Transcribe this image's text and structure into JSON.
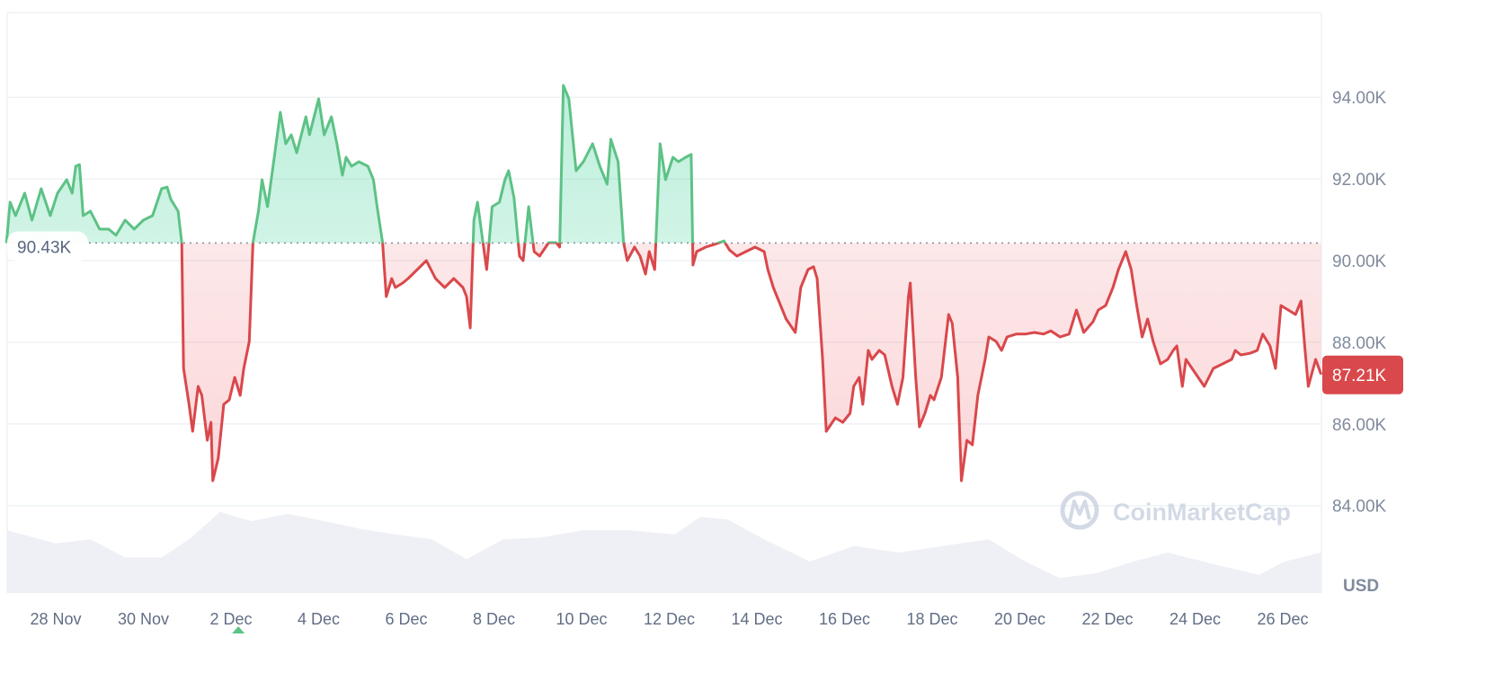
{
  "chart_data": {
    "type": "area",
    "title": "",
    "xlabel": "",
    "ylabel": "",
    "currency_label": "USD",
    "ylim": [
      83000,
      95500
    ],
    "y_ticks": [
      {
        "value": 84000,
        "label": "84.00K"
      },
      {
        "value": 86000,
        "label": "86.00K"
      },
      {
        "value": 88000,
        "label": "88.00K"
      },
      {
        "value": 90000,
        "label": "90.00K"
      },
      {
        "value": 92000,
        "label": "92.00K"
      },
      {
        "value": 94000,
        "label": "94.00K"
      }
    ],
    "x_ticks": [
      "28 Nov",
      "30 Nov",
      "2 Dec",
      "4 Dec",
      "6 Dec",
      "8 Dec",
      "10 Dec",
      "12 Dec",
      "14 Dec",
      "16 Dec",
      "18 Dec",
      "20 Dec",
      "22 Dec",
      "24 Dec",
      "26 Dec"
    ],
    "x_tick_dates": [
      "11-28 00:00",
      "11-30 00:00",
      "12-02 00:00",
      "12-04 00:00",
      "12-06 00:00",
      "12-08 00:00",
      "12-10 00:00",
      "12-12 00:00",
      "12-14 00:00",
      "12-16 00:00",
      "12-18 00:00",
      "12-20 00:00",
      "12-22 00:00",
      "12-24 00:00",
      "12-26 00:00"
    ],
    "grid": true,
    "baseline": {
      "value": 90430,
      "label": "90.43K"
    },
    "current": {
      "value": 87210,
      "label": "87.21K"
    },
    "colors": {
      "up": "#16c784",
      "up_line": "#5dc285",
      "down": "#ea3943",
      "down_line": "#d9484b",
      "volume": "#eff0f5",
      "grid": "#eff2f5",
      "marker": "#5dc285"
    },
    "marker_date": "12-02 04:00",
    "watermark": "CoinMarketCap",
    "series": [
      {
        "values": [
          [
            "11-26 21:00",
            90430
          ],
          [
            "11-26 23:00",
            91430
          ],
          [
            "11-27 02:00",
            91100
          ],
          [
            "11-27 07:00",
            91650
          ],
          [
            "11-27 11:00",
            90990
          ],
          [
            "11-27 16:00",
            91760
          ],
          [
            "11-27 21:00",
            91100
          ],
          [
            "11-28 01:00",
            91650
          ],
          [
            "11-28 06:00",
            91980
          ],
          [
            "11-28 09:00",
            91650
          ],
          [
            "11-28 11:00",
            92310
          ],
          [
            "11-28 13:00",
            92350
          ],
          [
            "11-28 15:00",
            91100
          ],
          [
            "11-28 19:00",
            91210
          ],
          [
            "11-29 00:00",
            90770
          ],
          [
            "11-29 05:00",
            90770
          ],
          [
            "11-29 09:00",
            90620
          ],
          [
            "11-29 14:00",
            90990
          ],
          [
            "11-29 19:00",
            90770
          ],
          [
            "11-30 00:00",
            90990
          ],
          [
            "11-30 05:00",
            91100
          ],
          [
            "11-30 10:00",
            91760
          ],
          [
            "11-30 13:00",
            91800
          ],
          [
            "11-30 15:00",
            91500
          ],
          [
            "11-30 19:00",
            91210
          ],
          [
            "11-30 21:00",
            90440
          ],
          [
            "11-30 22:00",
            87360
          ],
          [
            "12-01 01:00",
            86480
          ],
          [
            "12-01 03:00",
            85820
          ],
          [
            "12-01 06:00",
            86920
          ],
          [
            "12-01 08:00",
            86700
          ],
          [
            "12-01 11:00",
            85600
          ],
          [
            "12-01 13:00",
            86040
          ],
          [
            "12-01 14:00",
            84610
          ],
          [
            "12-01 17:00",
            85160
          ],
          [
            "12-01 20:00",
            86480
          ],
          [
            "12-01 23:00",
            86590
          ],
          [
            "12-02 02:00",
            87140
          ],
          [
            "12-02 05:00",
            86700
          ],
          [
            "12-02 07:00",
            87360
          ],
          [
            "12-02 10:00",
            88020
          ],
          [
            "12-02 12:00",
            90440
          ],
          [
            "12-02 15:00",
            91210
          ],
          [
            "12-02 17:00",
            91980
          ],
          [
            "12-02 20:00",
            91320
          ],
          [
            "12-03 00:00",
            92640
          ],
          [
            "12-03 03:00",
            93630
          ],
          [
            "12-03 06:00",
            92860
          ],
          [
            "12-03 09:00",
            93080
          ],
          [
            "12-03 12:00",
            92640
          ],
          [
            "12-03 17:00",
            93520
          ],
          [
            "12-03 19:00",
            93080
          ],
          [
            "12-04 00:00",
            93960
          ],
          [
            "12-04 03:00",
            93080
          ],
          [
            "12-04 07:00",
            93520
          ],
          [
            "12-04 10:00",
            92860
          ],
          [
            "12-04 13:00",
            92090
          ],
          [
            "12-04 15:00",
            92530
          ],
          [
            "12-04 18:00",
            92310
          ],
          [
            "12-04 22:00",
            92420
          ],
          [
            "12-05 03:00",
            92310
          ],
          [
            "12-05 06:00",
            91980
          ],
          [
            "12-05 08:00",
            91320
          ],
          [
            "12-05 11:00",
            90440
          ],
          [
            "12-05 13:00",
            89120
          ],
          [
            "12-05 16:00",
            89560
          ],
          [
            "12-05 18:00",
            89340
          ],
          [
            "12-05 22:00",
            89450
          ],
          [
            "12-06 01:00",
            89560
          ],
          [
            "12-06 06:00",
            89780
          ],
          [
            "12-06 11:00",
            90000
          ],
          [
            "12-06 16:00",
            89560
          ],
          [
            "12-06 21:00",
            89340
          ],
          [
            "12-07 02:00",
            89560
          ],
          [
            "12-07 07:00",
            89340
          ],
          [
            "12-07 09:00",
            89120
          ],
          [
            "12-07 11:00",
            88350
          ],
          [
            "12-07 13:00",
            90990
          ],
          [
            "12-07 15:00",
            91430
          ],
          [
            "12-07 18:00",
            90440
          ],
          [
            "12-07 20:00",
            89780
          ],
          [
            "12-07 23:00",
            91320
          ],
          [
            "12-08 03:00",
            91430
          ],
          [
            "12-08 06:00",
            91980
          ],
          [
            "12-08 08:00",
            92200
          ],
          [
            "12-08 11:00",
            91540
          ],
          [
            "12-08 14:00",
            90110
          ],
          [
            "12-08 16:00",
            90000
          ],
          [
            "12-08 19:00",
            91320
          ],
          [
            "12-08 22:00",
            90220
          ],
          [
            "12-09 01:00",
            90110
          ],
          [
            "12-09 06:00",
            90440
          ],
          [
            "12-09 10:00",
            90440
          ],
          [
            "12-09 12:00",
            90330
          ],
          [
            "12-09 14:00",
            94290
          ],
          [
            "12-09 17:00",
            93960
          ],
          [
            "12-09 21:00",
            92200
          ],
          [
            "12-10 01:00",
            92420
          ],
          [
            "12-10 06:00",
            92860
          ],
          [
            "12-10 10:00",
            92310
          ],
          [
            "12-10 14:00",
            91870
          ],
          [
            "12-10 16:00",
            92970
          ],
          [
            "12-10 20:00",
            92420
          ],
          [
            "12-10 23:00",
            90440
          ],
          [
            "12-11 01:00",
            90000
          ],
          [
            "12-11 05:00",
            90330
          ],
          [
            "12-11 08:00",
            90110
          ],
          [
            "12-11 11:00",
            89670
          ],
          [
            "12-11 13:00",
            90220
          ],
          [
            "12-11 16:00",
            89780
          ],
          [
            "12-11 19:00",
            92860
          ],
          [
            "12-11 22:00",
            91980
          ],
          [
            "12-12 02:00",
            92530
          ],
          [
            "12-12 05:00",
            92420
          ],
          [
            "12-12 09:00",
            92530
          ],
          [
            "12-12 12:00",
            92600
          ],
          [
            "12-12 13:00",
            89890
          ],
          [
            "12-12 15:00",
            90220
          ],
          [
            "12-12 20:00",
            90330
          ],
          [
            "12-13 01:00",
            90400
          ],
          [
            "12-13 06:00",
            90480
          ],
          [
            "12-13 09:00",
            90260
          ],
          [
            "12-13 13:00",
            90110
          ],
          [
            "12-13 18:00",
            90220
          ],
          [
            "12-13 23:00",
            90330
          ],
          [
            "12-14 04:00",
            90220
          ],
          [
            "12-14 06:00",
            89780
          ],
          [
            "12-14 09:00",
            89340
          ],
          [
            "12-14 13:00",
            88900
          ],
          [
            "12-14 16:00",
            88570
          ],
          [
            "12-14 21:00",
            88240
          ],
          [
            "12-15 00:00",
            89340
          ],
          [
            "12-15 04:00",
            89780
          ],
          [
            "12-15 07:00",
            89850
          ],
          [
            "12-15 09:00",
            89560
          ],
          [
            "12-15 12:00",
            87580
          ],
          [
            "12-15 14:00",
            85820
          ],
          [
            "12-15 19:00",
            86150
          ],
          [
            "12-15 23:00",
            86040
          ],
          [
            "12-16 03:00",
            86260
          ],
          [
            "12-16 05:00",
            86920
          ],
          [
            "12-16 08:00",
            87140
          ],
          [
            "12-16 10:00",
            86480
          ],
          [
            "12-16 13:00",
            87800
          ],
          [
            "12-16 15:00",
            87580
          ],
          [
            "12-16 19:00",
            87800
          ],
          [
            "12-16 22:00",
            87690
          ],
          [
            "12-17 02:00",
            86920
          ],
          [
            "12-17 05:00",
            86480
          ],
          [
            "12-17 08:00",
            87140
          ],
          [
            "12-17 11:00",
            89120
          ],
          [
            "12-17 12:00",
            89450
          ],
          [
            "12-17 15:00",
            87140
          ],
          [
            "12-17 17:00",
            85930
          ],
          [
            "12-17 20:00",
            86260
          ],
          [
            "12-17 23:00",
            86700
          ],
          [
            "12-18 01:00",
            86590
          ],
          [
            "12-18 05:00",
            87140
          ],
          [
            "12-18 09:00",
            88680
          ],
          [
            "12-18 11:00",
            88460
          ],
          [
            "12-18 14:00",
            87140
          ],
          [
            "12-18 16:00",
            84610
          ],
          [
            "12-18 19:00",
            85600
          ],
          [
            "12-18 22:00",
            85490
          ],
          [
            "12-19 01:00",
            86700
          ],
          [
            "12-19 05:00",
            87580
          ],
          [
            "12-19 07:00",
            88130
          ],
          [
            "12-19 11:00",
            88020
          ],
          [
            "12-19 14:00",
            87800
          ],
          [
            "12-19 17:00",
            88130
          ],
          [
            "12-19 22:00",
            88200
          ],
          [
            "12-20 03:00",
            88200
          ],
          [
            "12-20 08:00",
            88240
          ],
          [
            "12-20 13:00",
            88200
          ],
          [
            "12-20 17:00",
            88280
          ],
          [
            "12-20 22:00",
            88130
          ],
          [
            "12-21 03:00",
            88200
          ],
          [
            "12-21 07:00",
            88790
          ],
          [
            "12-21 11:00",
            88240
          ],
          [
            "12-21 16:00",
            88500
          ],
          [
            "12-21 19:00",
            88790
          ],
          [
            "12-21 23:00",
            88900
          ],
          [
            "12-22 03:00",
            89340
          ],
          [
            "12-22 06:00",
            89780
          ],
          [
            "12-22 10:00",
            90220
          ],
          [
            "12-22 13:00",
            89780
          ],
          [
            "12-22 16:00",
            88900
          ],
          [
            "12-22 19:00",
            88130
          ],
          [
            "12-22 22:00",
            88570
          ],
          [
            "12-23 01:00",
            88020
          ],
          [
            "12-23 05:00",
            87470
          ],
          [
            "12-23 09:00",
            87580
          ],
          [
            "12-23 12:00",
            87800
          ],
          [
            "12-23 14:00",
            87910
          ],
          [
            "12-23 17:00",
            86920
          ],
          [
            "12-23 19:00",
            87580
          ],
          [
            "12-24 00:00",
            87250
          ],
          [
            "12-24 05:00",
            86920
          ],
          [
            "12-24 10:00",
            87360
          ],
          [
            "12-24 15:00",
            87470
          ],
          [
            "12-24 20:00",
            87580
          ],
          [
            "12-24 22:00",
            87800
          ],
          [
            "12-25 01:00",
            87690
          ],
          [
            "12-25 06:00",
            87730
          ],
          [
            "12-25 10:00",
            87800
          ],
          [
            "12-25 13:00",
            88200
          ],
          [
            "12-25 17:00",
            87910
          ],
          [
            "12-25 20:00",
            87360
          ],
          [
            "12-25 23:00",
            88900
          ],
          [
            "12-26 03:00",
            88790
          ],
          [
            "12-26 07:00",
            88680
          ],
          [
            "12-26 10:00",
            89010
          ],
          [
            "12-26 12:00",
            87910
          ],
          [
            "12-26 14:00",
            86920
          ],
          [
            "12-26 18:00",
            87580
          ],
          [
            "12-26 21:00",
            87210
          ]
        ]
      }
    ],
    "volume_level_percent": [
      [
        "11-26 21:00",
        76
      ],
      [
        "11-28 00:00",
        60
      ],
      [
        "11-28 19:00",
        65
      ],
      [
        "11-29 14:00",
        43
      ],
      [
        "11-30 10:00",
        43
      ],
      [
        "12-01 01:00",
        65
      ],
      [
        "12-01 18:00",
        98
      ],
      [
        "12-02 11:00",
        87
      ],
      [
        "12-03 07:00",
        96
      ],
      [
        "12-04 03:00",
        87
      ],
      [
        "12-04 22:00",
        78
      ],
      [
        "12-05 18:00",
        71
      ],
      [
        "12-06 14:00",
        65
      ],
      [
        "12-07 09:00",
        41
      ],
      [
        "12-08 05:00",
        65
      ],
      [
        "12-09 01:00",
        67
      ],
      [
        "12-10 01:00",
        76
      ],
      [
        "12-11 02:00",
        76
      ],
      [
        "12-12 03:00",
        71
      ],
      [
        "12-12 17:00",
        92
      ],
      [
        "12-13 08:00",
        89
      ],
      [
        "12-14 04:00",
        65
      ],
      [
        "12-15 05:00",
        38
      ],
      [
        "12-16 05:00",
        57
      ],
      [
        "12-17 06:00",
        49
      ],
      [
        "12-18 06:00",
        57
      ],
      [
        "12-19 07:00",
        65
      ],
      [
        "12-20 03:00",
        38
      ],
      [
        "12-20 22:00",
        18
      ],
      [
        "12-21 18:00",
        24
      ],
      [
        "12-22 14:00",
        38
      ],
      [
        "12-23 09:00",
        49
      ],
      [
        "12-24 10:00",
        35
      ],
      [
        "12-25 11:00",
        22
      ],
      [
        "12-26 01:00",
        38
      ],
      [
        "12-26 21:00",
        49
      ]
    ]
  }
}
